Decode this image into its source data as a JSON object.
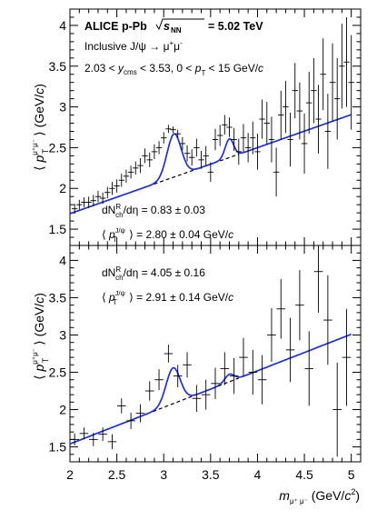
{
  "chart_data": [
    {
      "type": "scatter",
      "header": {
        "collab": "ALICE p-Pb",
        "energy_sym": "s",
        "energy_sub": "NN",
        "energy_val": "= 5.02 TeV"
      },
      "lines": [
        {
          "main": "Inclusive J/ψ → μ",
          "sup": "+",
          "tail": "μ",
          "sup2": "-"
        },
        {
          "a": "2.03 < ",
          "y": "y",
          "ysub": "cms",
          "b": " < 3.53, 0 < ",
          "p": "p",
          "psub": "T",
          "c": " < 15 GeV/",
          "cc": "c"
        }
      ],
      "ann1": {
        "dn": "dN",
        "sup": "R",
        "sub": "ch",
        "rest": "/dη = 0.83 ± 0.03"
      },
      "ann2": {
        "pt": "p",
        "sup": "J/ψ",
        "sub": "T",
        "rest": "= 2.80 ± 0.04 GeV/",
        "c": "c"
      },
      "ylabel": {
        "pt": "p",
        "sup": "μ⁺μ⁻",
        "sub": "T",
        "unit": "(GeV/",
        "c": "c",
        "close": ")"
      },
      "ylim": [
        1.3,
        4.2
      ],
      "yticks": [
        "1.5",
        "2",
        "2.5",
        "3",
        "3.5",
        "4"
      ],
      "points": [
        {
          "x": 2.05,
          "y": 1.75,
          "e": 0.06
        },
        {
          "x": 2.1,
          "y": 1.8,
          "e": 0.06
        },
        {
          "x": 2.15,
          "y": 1.83,
          "e": 0.06
        },
        {
          "x": 2.2,
          "y": 1.83,
          "e": 0.07
        },
        {
          "x": 2.25,
          "y": 1.85,
          "e": 0.07
        },
        {
          "x": 2.3,
          "y": 1.9,
          "e": 0.07
        },
        {
          "x": 2.35,
          "y": 1.88,
          "e": 0.07
        },
        {
          "x": 2.4,
          "y": 1.95,
          "e": 0.07
        },
        {
          "x": 2.45,
          "y": 2.0,
          "e": 0.08
        },
        {
          "x": 2.5,
          "y": 2.03,
          "e": 0.08
        },
        {
          "x": 2.55,
          "y": 2.1,
          "e": 0.08
        },
        {
          "x": 2.6,
          "y": 2.15,
          "e": 0.08
        },
        {
          "x": 2.65,
          "y": 2.2,
          "e": 0.08
        },
        {
          "x": 2.7,
          "y": 2.25,
          "e": 0.08
        },
        {
          "x": 2.75,
          "y": 2.28,
          "e": 0.09
        },
        {
          "x": 2.8,
          "y": 2.4,
          "e": 0.09
        },
        {
          "x": 2.85,
          "y": 2.35,
          "e": 0.09
        },
        {
          "x": 2.9,
          "y": 2.45,
          "e": 0.09
        },
        {
          "x": 2.95,
          "y": 2.5,
          "e": 0.08
        },
        {
          "x": 3.0,
          "y": 2.62,
          "e": 0.07
        },
        {
          "x": 3.05,
          "y": 2.73,
          "e": 0.05
        },
        {
          "x": 3.1,
          "y": 2.72,
          "e": 0.04
        },
        {
          "x": 3.15,
          "y": 2.67,
          "e": 0.05
        },
        {
          "x": 3.2,
          "y": 2.55,
          "e": 0.08
        },
        {
          "x": 3.25,
          "y": 2.43,
          "e": 0.1
        },
        {
          "x": 3.3,
          "y": 2.38,
          "e": 0.1
        },
        {
          "x": 3.35,
          "y": 2.5,
          "e": 0.11
        },
        {
          "x": 3.4,
          "y": 2.35,
          "e": 0.11
        },
        {
          "x": 3.45,
          "y": 2.4,
          "e": 0.12
        },
        {
          "x": 3.5,
          "y": 2.2,
          "e": 0.12
        },
        {
          "x": 3.55,
          "y": 2.6,
          "e": 0.13
        },
        {
          "x": 3.6,
          "y": 2.65,
          "e": 0.13
        },
        {
          "x": 3.65,
          "y": 2.78,
          "e": 0.12
        },
        {
          "x": 3.7,
          "y": 2.75,
          "e": 0.12
        },
        {
          "x": 3.75,
          "y": 2.6,
          "e": 0.14
        },
        {
          "x": 3.8,
          "y": 2.45,
          "e": 0.16
        },
        {
          "x": 3.85,
          "y": 2.62,
          "e": 0.17
        },
        {
          "x": 3.9,
          "y": 2.5,
          "e": 0.18
        },
        {
          "x": 3.95,
          "y": 2.62,
          "e": 0.2
        },
        {
          "x": 4.0,
          "y": 2.45,
          "e": 0.22
        },
        {
          "x": 4.05,
          "y": 2.85,
          "e": 0.24
        },
        {
          "x": 4.1,
          "y": 2.8,
          "e": 0.26
        },
        {
          "x": 4.15,
          "y": 2.6,
          "e": 0.28
        },
        {
          "x": 4.2,
          "y": 2.2,
          "e": 0.3
        },
        {
          "x": 4.25,
          "y": 2.9,
          "e": 0.3
        },
        {
          "x": 4.3,
          "y": 3.0,
          "e": 0.32
        },
        {
          "x": 4.35,
          "y": 2.6,
          "e": 0.33
        },
        {
          "x": 4.4,
          "y": 3.2,
          "e": 0.34
        },
        {
          "x": 4.45,
          "y": 2.95,
          "e": 0.35
        },
        {
          "x": 4.5,
          "y": 2.55,
          "e": 0.37
        },
        {
          "x": 4.55,
          "y": 3.05,
          "e": 0.38
        },
        {
          "x": 4.6,
          "y": 3.2,
          "e": 0.4
        },
        {
          "x": 4.65,
          "y": 2.85,
          "e": 0.42
        },
        {
          "x": 4.7,
          "y": 3.4,
          "e": 0.44
        },
        {
          "x": 4.75,
          "y": 2.7,
          "e": 0.46
        },
        {
          "x": 4.8,
          "y": 3.3,
          "e": 0.48
        },
        {
          "x": 4.85,
          "y": 3.1,
          "e": 0.5
        },
        {
          "x": 4.9,
          "y": 3.5,
          "e": 0.52
        },
        {
          "x": 4.95,
          "y": 3.55,
          "e": 0.55
        },
        {
          "x": 5.0,
          "y": 3.3,
          "e": 0.58
        }
      ],
      "fit": {
        "a": 1.69,
        "b": 0.405,
        "peaks": [
          {
            "m": 3.11,
            "s": 0.075,
            "h": 0.53
          },
          {
            "m": 3.7,
            "s": 0.045,
            "h": 0.23
          }
        ]
      },
      "background": {
        "a": 1.69,
        "b": 0.405,
        "x_end": 3.8
      }
    },
    {
      "type": "scatter",
      "ann1": {
        "dn": "dN",
        "sup": "R",
        "sub": "ch",
        "rest": "/dη = 4.05 ± 0.16"
      },
      "ann2": {
        "pt": "p",
        "sup": "J/ψ",
        "sub": "T",
        "rest": "= 2.91 ± 0.14 GeV/",
        "c": "c"
      },
      "ylabel": {
        "pt": "p",
        "sup": "μ⁺μ⁻",
        "sub": "T",
        "unit": "(GeV/",
        "c": "c",
        "close": ")"
      },
      "ylim": [
        1.3,
        4.2
      ],
      "yticks": [
        "1.5",
        "2",
        "2.5",
        "3",
        "3.5",
        "4"
      ],
      "xlabel": {
        "m": "m",
        "sub": "μ⁺ μ⁻",
        "unit": "(GeV/",
        "c": "c",
        "sup": "2",
        "close": ")"
      },
      "xlim": [
        2,
        5.1
      ],
      "xticks": [
        "2",
        "2.5",
        "3",
        "3.5",
        "4",
        "4.5",
        "5"
      ],
      "points": [
        {
          "x": 2.05,
          "y": 1.6,
          "e": 0.08
        },
        {
          "x": 2.15,
          "y": 1.68,
          "e": 0.08
        },
        {
          "x": 2.25,
          "y": 1.6,
          "e": 0.09
        },
        {
          "x": 2.35,
          "y": 1.67,
          "e": 0.09
        },
        {
          "x": 2.45,
          "y": 1.57,
          "e": 0.1
        },
        {
          "x": 2.55,
          "y": 2.05,
          "e": 0.1
        },
        {
          "x": 2.65,
          "y": 1.85,
          "e": 0.11
        },
        {
          "x": 2.75,
          "y": 1.95,
          "e": 0.12
        },
        {
          "x": 2.85,
          "y": 2.25,
          "e": 0.13
        },
        {
          "x": 2.95,
          "y": 2.4,
          "e": 0.14
        },
        {
          "x": 3.05,
          "y": 2.75,
          "e": 0.12
        },
        {
          "x": 3.15,
          "y": 2.45,
          "e": 0.15
        },
        {
          "x": 3.25,
          "y": 2.6,
          "e": 0.17
        },
        {
          "x": 3.35,
          "y": 2.15,
          "e": 0.18
        },
        {
          "x": 3.45,
          "y": 2.2,
          "e": 0.2
        },
        {
          "x": 3.55,
          "y": 2.35,
          "e": 0.21
        },
        {
          "x": 3.65,
          "y": 2.55,
          "e": 0.22
        },
        {
          "x": 3.75,
          "y": 2.45,
          "e": 0.24
        },
        {
          "x": 3.85,
          "y": 2.7,
          "e": 0.26
        },
        {
          "x": 3.95,
          "y": 2.5,
          "e": 0.3
        },
        {
          "x": 4.05,
          "y": 2.4,
          "e": 0.33
        },
        {
          "x": 4.15,
          "y": 3.0,
          "e": 0.36
        },
        {
          "x": 4.25,
          "y": 3.35,
          "e": 0.4
        },
        {
          "x": 4.35,
          "y": 2.8,
          "e": 0.43
        },
        {
          "x": 4.45,
          "y": 3.4,
          "e": 0.47
        },
        {
          "x": 4.55,
          "y": 2.55,
          "e": 0.5
        },
        {
          "x": 4.65,
          "y": 3.85,
          "e": 0.55
        },
        {
          "x": 4.75,
          "y": 3.2,
          "e": 0.6
        },
        {
          "x": 4.85,
          "y": 2.0,
          "e": 0.63
        },
        {
          "x": 4.95,
          "y": 2.7,
          "e": 0.65
        }
      ],
      "fit": {
        "a": 1.54,
        "b": 0.49,
        "peaks": [
          {
            "m": 3.1,
            "s": 0.075,
            "h": 0.48
          },
          {
            "m": 3.7,
            "s": 0.05,
            "h": 0.1
          }
        ]
      },
      "background": {
        "a": 1.54,
        "b": 0.49,
        "x_end": 3.8
      }
    }
  ]
}
